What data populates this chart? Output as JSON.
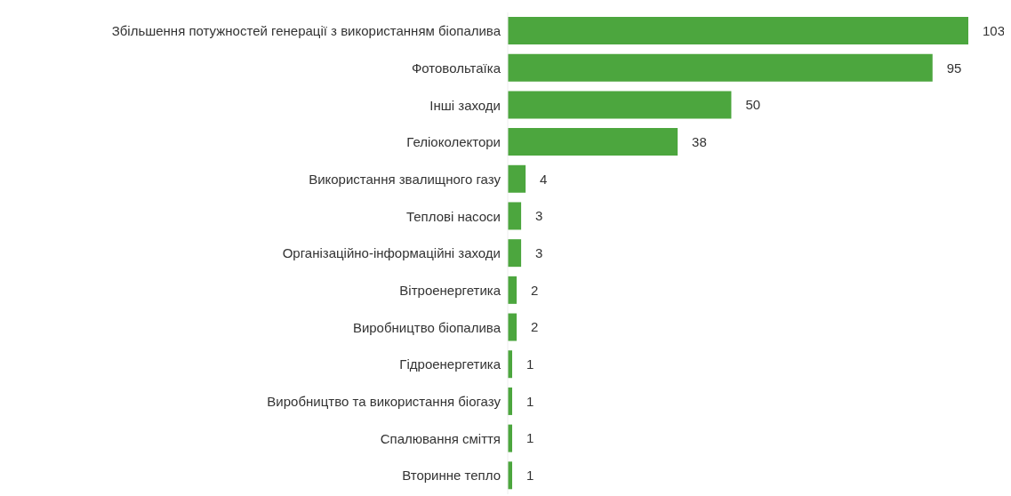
{
  "chart_data": {
    "type": "bar",
    "orientation": "horizontal",
    "categories": [
      "Збільшення потужностей генерації з використанням біопалива",
      "Фотовольтаїка",
      "Інші заходи",
      "Геліоколектори",
      "Використання звалищного газу",
      "Теплові насоси",
      "Організаційно-інформаційні заходи",
      "Вітроенергетика",
      "Виробництво біопалива",
      "Гідроенергетика",
      "Виробництво та використання біогазу",
      "Спалювання сміття",
      "Вторинне тепло"
    ],
    "values": [
      103,
      95,
      50,
      38,
      4,
      3,
      3,
      2,
      2,
      1,
      1,
      1,
      1
    ],
    "color": "#4ca63e",
    "data_labels": true,
    "tick_labels": "y"
  }
}
